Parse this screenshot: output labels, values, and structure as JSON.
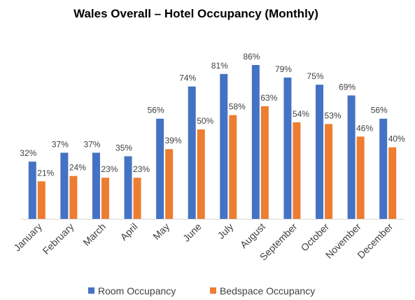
{
  "chart_data": {
    "type": "bar",
    "title": "Wales Overall – Hotel Occupancy (Monthly)",
    "categories": [
      "January",
      "February",
      "March",
      "April",
      "May",
      "June",
      "July",
      "August",
      "September",
      "October",
      "November",
      "December"
    ],
    "series": [
      {
        "name": "Room Occupancy",
        "color": "#4472C4",
        "values": [
          32,
          37,
          37,
          35,
          56,
          74,
          81,
          86,
          79,
          75,
          69,
          56
        ]
      },
      {
        "name": "Bedspace Occupancy",
        "color": "#ED7D31",
        "values": [
          21,
          24,
          23,
          23,
          39,
          50,
          58,
          63,
          54,
          53,
          46,
          40
        ]
      }
    ],
    "value_suffix": "%",
    "ylim": [
      0,
      86
    ],
    "grid": false,
    "legend": "bottom"
  }
}
